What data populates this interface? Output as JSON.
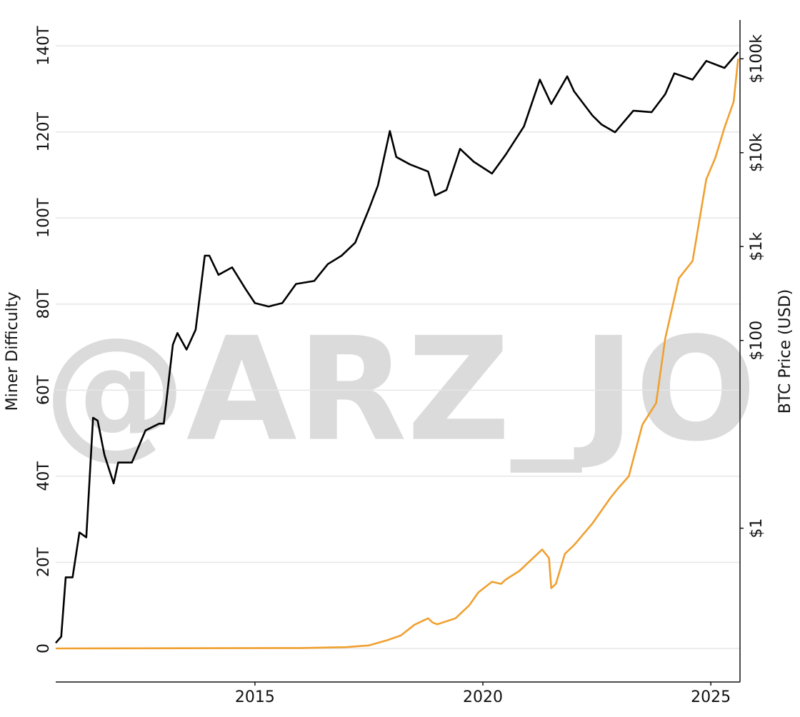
{
  "chart_data": {
    "type": "line",
    "watermark": "@ARZ_JO",
    "y_label": "Miner Difficulty",
    "y2_label": "BTC Price (USD)",
    "xlim": [
      2010.63,
      2025.64
    ],
    "xticks": [
      2015,
      2020,
      2025
    ],
    "ylim": [
      -7.8,
      146
    ],
    "yticks": [
      0,
      {
        "value": 20,
        "label": "20T"
      },
      {
        "value": 40,
        "label": "40T"
      },
      {
        "value": 60,
        "label": "60T"
      },
      {
        "value": 80,
        "label": "80T"
      },
      {
        "value": 100,
        "label": "100T"
      },
      {
        "value": 120,
        "label": "120T"
      },
      {
        "value": 140,
        "label": "140T"
      }
    ],
    "y2lim": [
      0.023,
      259000
    ],
    "y2scale": "log",
    "y2ticks": [
      {
        "value": 1,
        "label": "$1"
      },
      {
        "value": 100,
        "label": "$100"
      },
      {
        "value": 1000,
        "label": "$1k"
      },
      {
        "value": 10000,
        "label": "$10k"
      },
      {
        "value": 100000,
        "label": "$100k"
      }
    ],
    "grid": true,
    "series": [
      {
        "color": "#f0a030",
        "axis": "y",
        "x": [
          2010.63,
          2016.0,
          2017.0,
          2017.5,
          2017.9,
          2018.2,
          2018.5,
          2018.8,
          2018.9,
          2019.0,
          2019.4,
          2019.7,
          2019.9,
          2020.2,
          2020.4,
          2020.5,
          2020.8,
          2021.0,
          2021.3,
          2021.45,
          2021.5,
          2021.6,
          2021.8,
          2022.0,
          2022.4,
          2022.8,
          2022.95,
          2023.2,
          2023.5,
          2023.8,
          2024.0,
          2024.3,
          2024.6,
          2024.9,
          2025.1,
          2025.3,
          2025.5,
          2025.6
        ],
        "values": [
          0,
          0.1,
          0.3,
          0.7,
          1.9,
          3,
          5.5,
          7,
          6,
          5.6,
          7,
          10,
          13,
          15.5,
          15,
          16,
          18,
          20,
          23,
          21,
          14,
          15,
          22,
          24,
          29,
          35,
          37,
          40,
          52,
          57,
          72,
          86,
          90,
          109,
          114,
          121,
          127,
          137
        ]
      },
      {
        "color": "#000000",
        "axis": "y2",
        "x": [
          2010.63,
          2010.75,
          2010.85,
          2011.0,
          2011.15,
          2011.3,
          2011.45,
          2011.55,
          2011.7,
          2011.9,
          2012.0,
          2012.3,
          2012.6,
          2012.9,
          2013.0,
          2013.2,
          2013.3,
          2013.5,
          2013.7,
          2013.9,
          2014.0,
          2014.2,
          2014.5,
          2014.8,
          2015.0,
          2015.3,
          2015.6,
          2015.9,
          2016.3,
          2016.6,
          2016.9,
          2017.2,
          2017.5,
          2017.7,
          2017.96,
          2018.1,
          2018.4,
          2018.8,
          2018.95,
          2019.2,
          2019.5,
          2019.8,
          2020.2,
          2020.5,
          2020.9,
          2021.25,
          2021.5,
          2021.85,
          2022.0,
          2022.4,
          2022.6,
          2022.9,
          2023.3,
          2023.7,
          2024.0,
          2024.2,
          2024.6,
          2024.9,
          2025.3,
          2025.6
        ],
        "values": [
          0.06,
          0.07,
          0.3,
          0.3,
          0.9,
          0.8,
          15,
          14,
          6,
          3,
          5,
          5,
          11,
          13,
          13,
          90,
          120,
          80,
          130,
          800,
          800,
          500,
          600,
          350,
          250,
          230,
          250,
          400,
          430,
          650,
          800,
          1100,
          2500,
          4500,
          17000,
          9000,
          7500,
          6300,
          3500,
          4000,
          11000,
          8000,
          6000,
          9500,
          19000,
          60000,
          33000,
          65000,
          45000,
          25000,
          20000,
          16500,
          28000,
          27000,
          42000,
          70000,
          60000,
          95000,
          80000,
          118000
        ]
      }
    ]
  }
}
